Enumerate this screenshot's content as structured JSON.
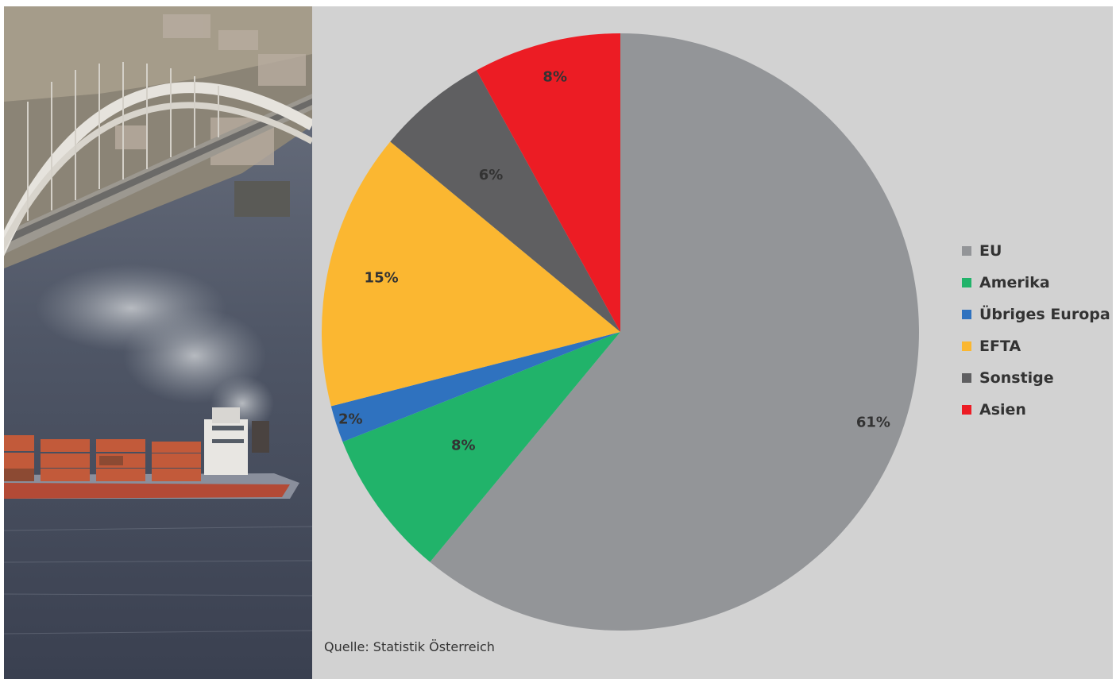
{
  "chart_data": {
    "type": "pie",
    "categories": [
      "EU",
      "Amerika",
      "Übriges Europa",
      "EFTA",
      "Sonstige",
      "Asien"
    ],
    "values": [
      61,
      8,
      2,
      15,
      6,
      8
    ],
    "value_labels": [
      "61%",
      "8%",
      "2%",
      "15%",
      "6%",
      "8%"
    ],
    "colors": [
      "#939598",
      "#21b36a",
      "#2f72bf",
      "#fbb731",
      "#5f5f61",
      "#ec1c24"
    ],
    "start_angle": "12 o'clock",
    "direction": "clockwise",
    "legend_placement": "right",
    "source": "Quelle: Statistik Österreich"
  },
  "photo": {
    "subject": "container-ship-under-arch-bridge"
  }
}
